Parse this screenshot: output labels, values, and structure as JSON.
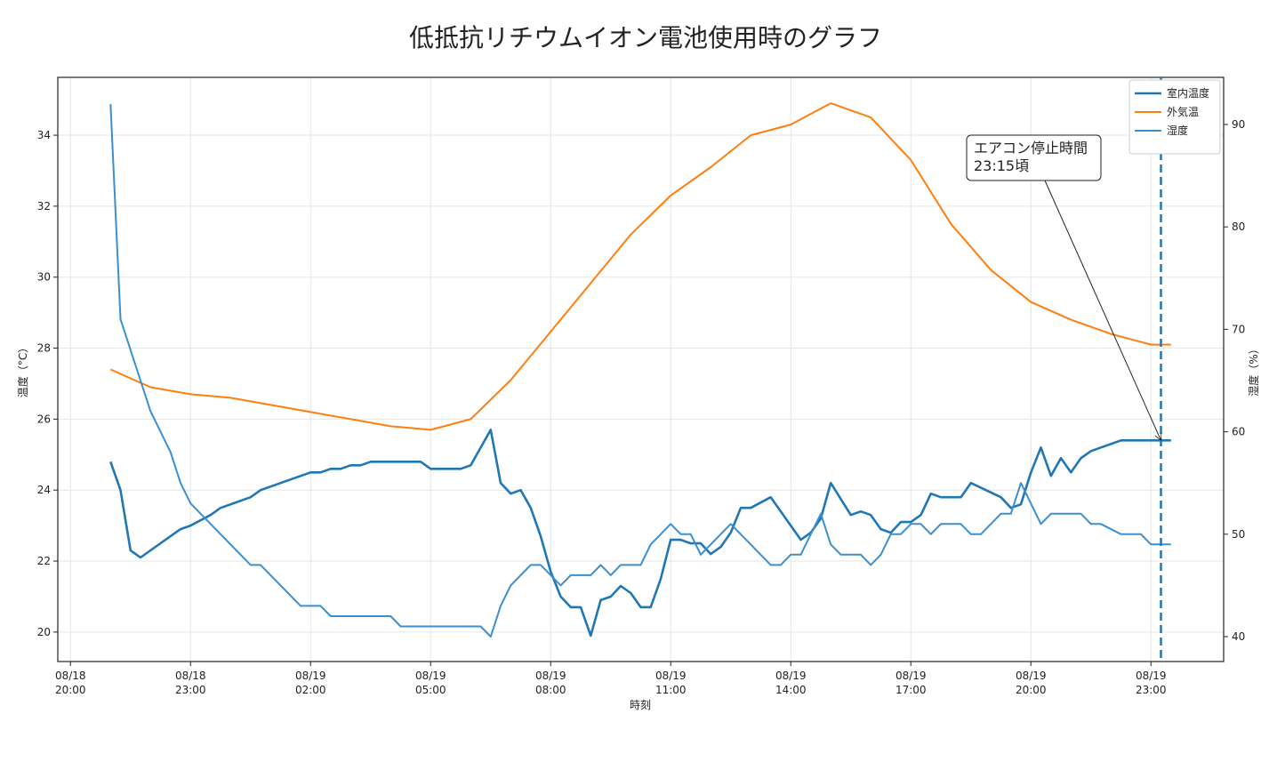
{
  "chart_data": {
    "type": "line",
    "title": "低抵抗リチウムイオン電池使用時のグラフ",
    "xlabel": "時刻",
    "ylabel": "温度（°C）",
    "y2label": "湿度（%）",
    "xlim": [
      "08/18 19:41",
      "08/20 00:49"
    ],
    "xticks": [
      "08/18 20:00",
      "08/18 23:00",
      "08/19 02:00",
      "08/19 05:00",
      "08/19 08:00",
      "08/19 11:00",
      "08/19 14:00",
      "08/19 17:00",
      "08/19 20:00",
      "08/19 23:00"
    ],
    "ylim": [
      19.17,
      35.63
    ],
    "yticks": [
      20,
      22,
      24,
      26,
      28,
      30,
      32,
      34
    ],
    "y2lim": [
      37.57,
      94.6
    ],
    "y2ticks": [
      40,
      50,
      60,
      70,
      80,
      90
    ],
    "grid": true,
    "legend": "upper right",
    "series": [
      {
        "name": "室内温度",
        "color": "#1f77b4",
        "axis": "y",
        "x": [
          "08/18 21:00",
          "08/18 21:15",
          "08/18 21:30",
          "08/18 21:45",
          "08/18 22:45",
          "08/18 23:00",
          "08/18 23:30",
          "08/18 23:45",
          "08/19 00:30",
          "08/19 00:45",
          "08/19 02:00",
          "08/19 02:15",
          "08/19 02:30",
          "08/19 02:45",
          "08/19 03:00",
          "08/19 03:15",
          "08/19 03:30",
          "08/19 04:45",
          "08/19 05:00",
          "08/19 05:45",
          "08/19 06:00",
          "08/19 06:30",
          "08/19 06:45",
          "08/19 07:00",
          "08/19 07:15",
          "08/19 07:30",
          "08/19 07:45",
          "08/19 08:00",
          "08/19 08:15",
          "08/19 08:30",
          "08/19 08:45",
          "08/19 09:00",
          "08/19 09:15",
          "08/19 09:30",
          "08/19 09:45",
          "08/19 10:00",
          "08/19 10:15",
          "08/19 10:30",
          "08/19 10:45",
          "08/19 11:00",
          "08/19 11:15",
          "08/19 11:30",
          "08/19 11:45",
          "08/19 12:00",
          "08/19 12:15",
          "08/19 12:30",
          "08/19 12:45",
          "08/19 13:00",
          "08/19 13:30",
          "08/19 14:15",
          "08/19 14:30",
          "08/19 14:45",
          "08/19 15:00",
          "08/19 15:30",
          "08/19 15:45",
          "08/19 16:00",
          "08/19 16:15",
          "08/19 16:30",
          "08/19 16:45",
          "08/19 17:00",
          "08/19 17:15",
          "08/19 17:30",
          "08/19 17:45",
          "08/19 18:15",
          "08/19 18:30",
          "08/19 19:15",
          "08/19 19:30",
          "08/19 19:45",
          "08/19 20:00",
          "08/19 20:15",
          "08/19 20:30",
          "08/19 20:45",
          "08/19 21:00",
          "08/19 21:15",
          "08/19 21:30",
          "08/19 22:15",
          "08/19 23:30"
        ],
        "values": [
          24.8,
          24.0,
          22.3,
          22.1,
          22.9,
          23.0,
          23.3,
          23.5,
          23.8,
          24.0,
          24.5,
          24.5,
          24.6,
          24.6,
          24.7,
          24.7,
          24.8,
          24.8,
          24.6,
          24.6,
          24.7,
          25.7,
          24.2,
          23.9,
          24.0,
          23.5,
          22.7,
          21.7,
          21.0,
          20.7,
          20.7,
          19.9,
          20.9,
          21.0,
          21.3,
          21.1,
          20.7,
          20.7,
          21.5,
          22.6,
          22.6,
          22.5,
          22.5,
          22.2,
          22.4,
          22.8,
          23.5,
          23.5,
          23.8,
          22.6,
          22.8,
          23.2,
          24.2,
          23.3,
          23.4,
          23.3,
          22.9,
          22.8,
          23.1,
          23.1,
          23.3,
          23.9,
          23.8,
          23.8,
          24.2,
          23.8,
          23.5,
          23.6,
          24.5,
          25.2,
          24.4,
          24.9,
          24.5,
          24.9,
          25.1,
          25.4,
          25.4
        ]
      },
      {
        "name": "外気温",
        "color": "#ff7f0e",
        "axis": "y",
        "x": [
          "08/18 21:00",
          "08/18 22:00",
          "08/18 23:00",
          "08/19 00:00",
          "08/19 02:00",
          "08/19 04:00",
          "08/19 05:00",
          "08/19 06:00",
          "08/19 07:00",
          "08/19 10:00",
          "08/19 11:00",
          "08/19 12:00",
          "08/19 13:00",
          "08/19 14:00",
          "08/19 15:00",
          "08/19 16:00",
          "08/19 17:00",
          "08/19 18:00",
          "08/19 19:00",
          "08/19 20:00",
          "08/19 21:00",
          "08/19 22:00",
          "08/19 23:00",
          "08/19 23:30"
        ],
        "values": [
          27.4,
          26.9,
          26.7,
          26.6,
          26.2,
          25.8,
          25.7,
          26.0,
          27.1,
          31.2,
          32.3,
          33.1,
          34.0,
          34.3,
          34.9,
          34.5,
          33.3,
          31.5,
          30.2,
          29.3,
          28.8,
          28.4,
          28.1,
          28.1
        ]
      },
      {
        "name": "湿度",
        "color": "#3a8fd0",
        "axis": "y2",
        "x": [
          "08/18 21:00",
          "08/18 21:15",
          "08/18 21:45",
          "08/18 22:00",
          "08/18 22:30",
          "08/18 22:45",
          "08/18 23:00",
          "08/19 00:30",
          "08/19 00:45",
          "08/19 01:45",
          "08/19 02:15",
          "08/19 02:30",
          "08/19 04:00",
          "08/19 04:15",
          "08/19 06:15",
          "08/19 06:30",
          "08/19 06:45",
          "08/19 07:00",
          "08/19 07:30",
          "08/19 07:45",
          "08/19 08:15",
          "08/19 08:30",
          "08/19 09:00",
          "08/19 09:15",
          "08/19 09:30",
          "08/19 09:45",
          "08/19 10:15",
          "08/19 10:30",
          "08/19 11:00",
          "08/19 11:15",
          "08/19 11:30",
          "08/19 11:45",
          "08/19 12:30",
          "08/19 13:30",
          "08/19 13:45",
          "08/19 14:00",
          "08/19 14:15",
          "08/19 14:45",
          "08/19 15:00",
          "08/19 15:15",
          "08/19 15:45",
          "08/19 16:00",
          "08/19 16:15",
          "08/19 16:30",
          "08/19 16:45",
          "08/19 17:00",
          "08/19 17:15",
          "08/19 17:30",
          "08/19 17:45",
          "08/19 18:15",
          "08/19 18:30",
          "08/19 18:45",
          "08/19 19:15",
          "08/19 19:30",
          "08/19 19:45",
          "08/19 20:15",
          "08/19 20:30",
          "08/19 21:15",
          "08/19 21:30",
          "08/19 21:45",
          "08/19 22:15",
          "08/19 22:45",
          "08/19 23:00",
          "08/19 23:30"
        ],
        "values": [
          92,
          71,
          65,
          62,
          58,
          55,
          53,
          47,
          47,
          43,
          43,
          42,
          42,
          41,
          41,
          40,
          43,
          45,
          47,
          47,
          45,
          46,
          46,
          47,
          46,
          47,
          47,
          49,
          51,
          50,
          50,
          48,
          51,
          47,
          47,
          48,
          48,
          52,
          49,
          48,
          48,
          47,
          48,
          50,
          50,
          51,
          51,
          50,
          51,
          51,
          50,
          50,
          52,
          52,
          55,
          51,
          52,
          52,
          51,
          51,
          50,
          50,
          49,
          49
        ]
      }
    ],
    "vline": "08/19 23:15",
    "annotation": {
      "text": "エアコン停止時間\n23:15頃",
      "x": "08/19 23:15",
      "y": 25.4
    }
  }
}
